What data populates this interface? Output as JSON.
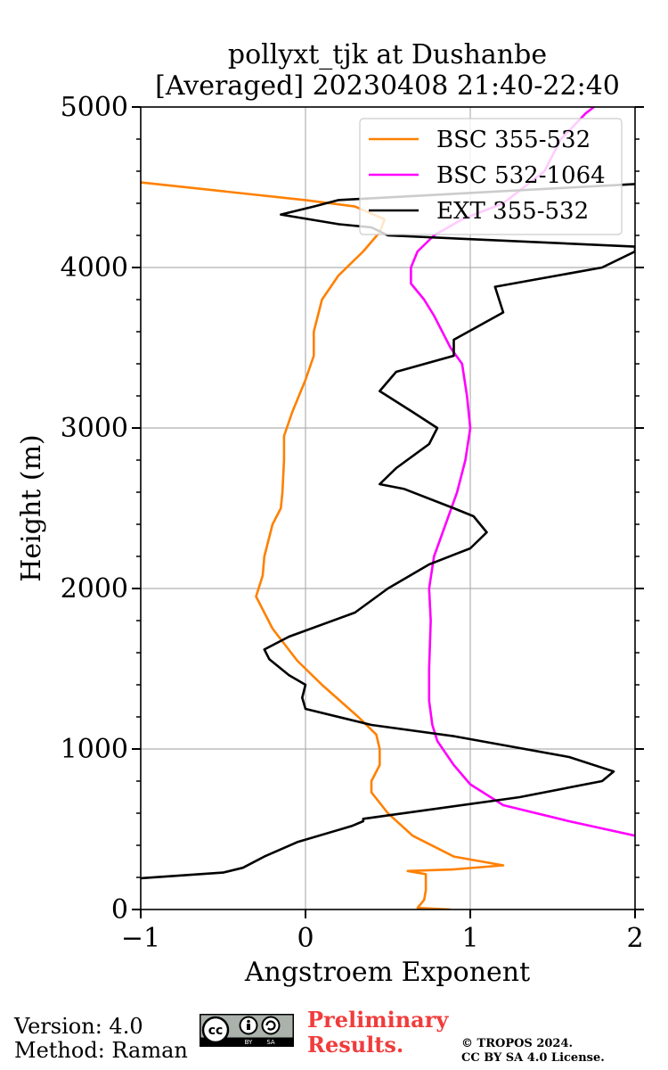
{
  "chart_data": {
    "type": "line",
    "title": "pollyxt_tjk at Dushanbe",
    "subtitle": "[Averaged] 20230408 21:40-22:40",
    "xlabel": "Angstroem Exponent",
    "ylabel": "Height (m)",
    "xlim": [
      -1,
      2
    ],
    "ylim": [
      0,
      5000
    ],
    "xticks": [
      -1,
      0,
      1,
      2
    ],
    "xtick_labels": [
      "−1",
      "0",
      "1",
      "2"
    ],
    "yticks": [
      0,
      1000,
      2000,
      3000,
      4000,
      5000
    ],
    "ytick_labels": [
      "0",
      "1000",
      "2000",
      "3000",
      "4000",
      "5000"
    ],
    "grid": true,
    "legend_position": "top-right",
    "series": [
      {
        "name": "BSC 355-532",
        "color": "#ff8000",
        "points": [
          [
            0.88,
            0
          ],
          [
            0.68,
            10
          ],
          [
            0.72,
            60
          ],
          [
            0.73,
            120
          ],
          [
            0.73,
            180
          ],
          [
            0.73,
            220
          ],
          [
            0.62,
            240
          ],
          [
            0.9,
            250
          ],
          [
            1.2,
            275
          ],
          [
            0.9,
            330
          ],
          [
            0.65,
            460
          ],
          [
            0.5,
            600
          ],
          [
            0.4,
            730
          ],
          [
            0.4,
            800
          ],
          [
            0.45,
            900
          ],
          [
            0.45,
            1000
          ],
          [
            0.43,
            1090
          ],
          [
            0.32,
            1200
          ],
          [
            0.1,
            1400
          ],
          [
            -0.05,
            1550
          ],
          [
            -0.2,
            1750
          ],
          [
            -0.3,
            1950
          ],
          [
            -0.26,
            2080
          ],
          [
            -0.25,
            2200
          ],
          [
            -0.2,
            2400
          ],
          [
            -0.15,
            2500
          ],
          [
            -0.14,
            2600
          ],
          [
            -0.13,
            2800
          ],
          [
            -0.13,
            2950
          ],
          [
            -0.08,
            3100
          ],
          [
            0,
            3300
          ],
          [
            0.05,
            3450
          ],
          [
            0.05,
            3600
          ],
          [
            0.1,
            3800
          ],
          [
            0.2,
            3950
          ],
          [
            0.35,
            4100
          ],
          [
            0.45,
            4220
          ],
          [
            0.48,
            4300
          ],
          [
            0.3,
            4380
          ],
          [
            0,
            4420
          ],
          [
            -1,
            4530
          ]
        ]
      },
      {
        "name": "BSC 532-1064",
        "color": "#ff00ff",
        "points": [
          [
            2,
            460
          ],
          [
            1.6,
            550
          ],
          [
            1.2,
            650
          ],
          [
            1.0,
            780
          ],
          [
            0.9,
            900
          ],
          [
            0.8,
            1050
          ],
          [
            0.77,
            1150
          ],
          [
            0.75,
            1300
          ],
          [
            0.75,
            1500
          ],
          [
            0.76,
            1800
          ],
          [
            0.75,
            2000
          ],
          [
            0.78,
            2200
          ],
          [
            0.85,
            2400
          ],
          [
            0.92,
            2600
          ],
          [
            0.97,
            2800
          ],
          [
            1.0,
            3000
          ],
          [
            0.98,
            3200
          ],
          [
            0.95,
            3400
          ],
          [
            0.88,
            3500
          ],
          [
            0.78,
            3700
          ],
          [
            0.72,
            3800
          ],
          [
            0.64,
            3900
          ],
          [
            0.64,
            4000
          ],
          [
            0.68,
            4100
          ],
          [
            0.78,
            4200
          ],
          [
            0.95,
            4300
          ],
          [
            1.2,
            4400
          ],
          [
            1.45,
            4600
          ],
          [
            1.55,
            4800
          ],
          [
            1.7,
            4960
          ],
          [
            1.75,
            5000
          ]
        ]
      },
      {
        "name": "EXT 355-532",
        "color": "#000000",
        "points": [
          [
            -1,
            195
          ],
          [
            -0.5,
            230
          ],
          [
            -0.38,
            260
          ],
          [
            -0.25,
            330
          ],
          [
            -0.05,
            420
          ],
          [
            0.28,
            520
          ],
          [
            0.35,
            550
          ],
          [
            0.35,
            565
          ],
          [
            1.3,
            700
          ],
          [
            1.8,
            800
          ],
          [
            1.87,
            860
          ],
          [
            1.6,
            950
          ],
          [
            0.9,
            1080
          ],
          [
            0.4,
            1150
          ],
          [
            0.0,
            1250
          ],
          [
            -0.02,
            1320
          ],
          [
            0,
            1400
          ],
          [
            -0.1,
            1460
          ],
          [
            -0.22,
            1560
          ],
          [
            -0.25,
            1620
          ],
          [
            -0.1,
            1700
          ],
          [
            0.3,
            1850
          ],
          [
            0.5,
            2000
          ],
          [
            0.75,
            2150
          ],
          [
            1.0,
            2250
          ],
          [
            1.1,
            2350
          ],
          [
            1.02,
            2450
          ],
          [
            0.9,
            2500
          ],
          [
            0.6,
            2620
          ],
          [
            0.45,
            2650
          ],
          [
            0.55,
            2750
          ],
          [
            0.75,
            2900
          ],
          [
            0.8,
            3000
          ],
          [
            0.65,
            3100
          ],
          [
            0.45,
            3230
          ],
          [
            0.55,
            3350
          ],
          [
            0.9,
            3450
          ],
          [
            0.9,
            3550
          ],
          [
            1.2,
            3720
          ],
          [
            1.15,
            3880
          ],
          [
            1.8,
            4000
          ],
          [
            2.0,
            4100
          ],
          [
            2.0,
            4130
          ],
          [
            0.5,
            4200
          ],
          [
            0.4,
            4250
          ],
          [
            0.2,
            4270
          ],
          [
            -0.15,
            4330
          ],
          [
            0.05,
            4380
          ],
          [
            0.2,
            4420
          ],
          [
            2,
            4520
          ]
        ]
      }
    ]
  },
  "footer": {
    "version": "Version: 4.0",
    "method": "Method: Raman",
    "cc_badge": {
      "cc": "cc",
      "by": "BY",
      "sa": "SA"
    },
    "preliminary": [
      "Preliminary",
      "Results."
    ],
    "copyright": [
      "© TROPOS 2024.",
      "CC BY SA 4.0 License."
    ]
  }
}
